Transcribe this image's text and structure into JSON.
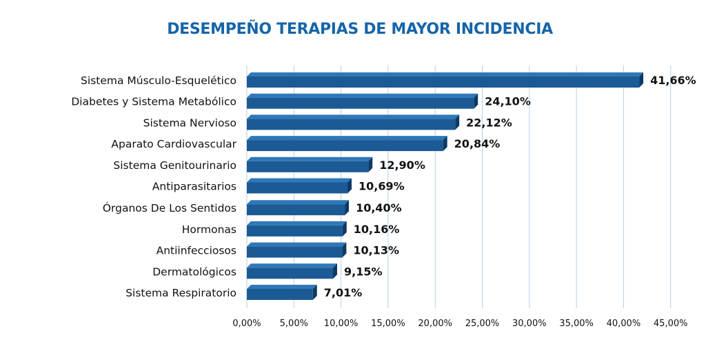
{
  "colors": {
    "title": "#1565a8",
    "bar_front": "#1b5a94",
    "bar_top": "#2f78b8",
    "bar_side": "#0d3a66",
    "grid": "#b7cde3"
  },
  "chart_data": {
    "type": "bar",
    "orientation": "horizontal",
    "title": "DESEMPEÑO TERAPIAS DE MAYOR INCIDENCIA",
    "categories": [
      "Sistema Músculo-Esquelético",
      "Diabetes y Sistema Metabólico",
      "Sistema Nervioso",
      "Aparato Cardiovascular",
      "Sistema Genitourinario",
      "Antiparasitarios",
      "Órganos De Los Sentidos",
      "Hormonas",
      "Antiinfecciosos",
      "Dermatológicos",
      "Sistema Respiratorio"
    ],
    "values": [
      41.66,
      24.1,
      22.12,
      20.84,
      12.9,
      10.69,
      10.4,
      10.16,
      10.13,
      9.15,
      7.01
    ],
    "value_labels": [
      "41,66%",
      "24,10%",
      "22,12%",
      "20,84%",
      "12,90%",
      "10,69%",
      "10,40%",
      "10,16%",
      "10,13%",
      "9,15%",
      "7,01%"
    ],
    "xlim": [
      0,
      45
    ],
    "xticks": [
      "0,00%",
      "5,00%",
      "10,00%",
      "15,00%",
      "20,00%",
      "25,00%",
      "30,00%",
      "35,00%",
      "40,00%",
      "45,00%"
    ],
    "grid": true
  }
}
